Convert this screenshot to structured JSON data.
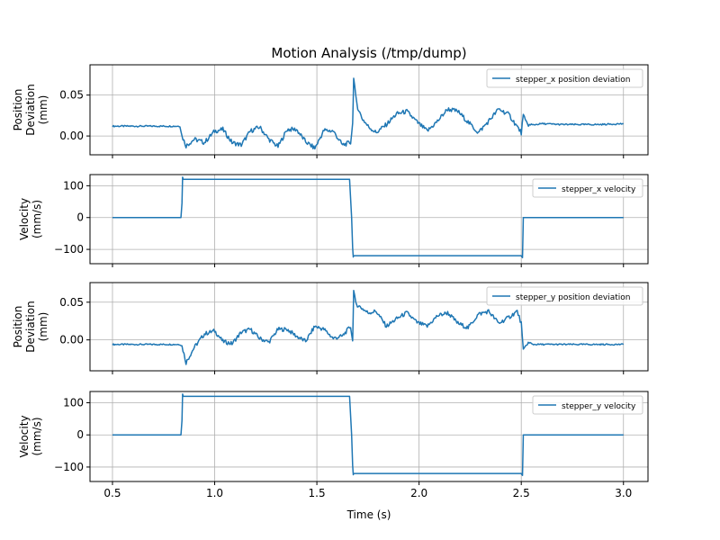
{
  "title": "Motion Analysis (/tmp/dump)",
  "xlabel": "Time (s)",
  "colors": {
    "series": "#1f77b4",
    "grid": "#b0b0b0",
    "axis": "#000000",
    "legend_border": "#cccccc"
  },
  "chart_data": [
    {
      "type": "line",
      "panel_name": "x-position-deviation",
      "ylabel_lines": [
        "Position",
        "Deviation",
        "(mm)"
      ],
      "legend": "stepper_x position deviation",
      "legend_placement": "top-right",
      "xlim": [
        0.39,
        3.12
      ],
      "ylim": [
        -0.023,
        0.087
      ],
      "xticks": [
        0.5,
        1.0,
        1.5,
        2.0,
        2.5,
        3.0
      ],
      "xtick_labels": [],
      "yticks": [
        0.0,
        0.05
      ],
      "ytick_labels": [
        "0.00",
        "0.05"
      ],
      "grid": true,
      "series": [
        {
          "name": "stepper_x position deviation",
          "x": [
            0.5,
            0.83,
            0.84,
            0.86,
            0.9,
            0.95,
            1.0,
            1.04,
            1.085,
            1.13,
            1.175,
            1.22,
            1.265,
            1.31,
            1.355,
            1.4,
            1.445,
            1.49,
            1.535,
            1.58,
            1.625,
            1.665,
            1.675,
            1.68,
            1.69,
            1.7,
            1.72,
            1.75,
            1.79,
            1.84,
            1.89,
            1.94,
            1.99,
            2.04,
            2.09,
            2.14,
            2.19,
            2.24,
            2.29,
            2.34,
            2.39,
            2.44,
            2.5,
            2.51,
            2.52,
            2.54,
            2.6,
            2.7,
            2.88,
            3.0
          ],
          "y": [
            0.012,
            0.012,
            0.0,
            -0.012,
            -0.004,
            -0.008,
            0.006,
            0.008,
            -0.008,
            -0.011,
            0.006,
            0.011,
            -0.004,
            -0.013,
            0.008,
            0.008,
            -0.007,
            -0.015,
            0.007,
            0.006,
            -0.011,
            -0.008,
            0.015,
            0.07,
            0.048,
            0.035,
            0.022,
            0.012,
            0.004,
            0.014,
            0.027,
            0.03,
            0.017,
            0.006,
            0.018,
            0.033,
            0.03,
            0.017,
            0.004,
            0.018,
            0.033,
            0.026,
            0.004,
            0.025,
            0.018,
            0.013,
            0.015,
            0.014,
            0.014,
            0.015
          ]
        }
      ]
    },
    {
      "type": "line",
      "panel_name": "x-velocity",
      "ylabel_lines": [
        "Velocity",
        "(mm/s)"
      ],
      "legend": "stepper_x velocity",
      "legend_placement": "top-right",
      "xlim": [
        0.39,
        3.12
      ],
      "ylim": [
        -145,
        135
      ],
      "xticks": [
        0.5,
        1.0,
        1.5,
        2.0,
        2.5,
        3.0
      ],
      "xtick_labels": [],
      "yticks": [
        -100,
        0,
        100
      ],
      "ytick_labels": [
        "−100",
        "0",
        "100"
      ],
      "grid": true,
      "series": [
        {
          "name": "stepper_x velocity",
          "x": [
            0.5,
            0.835,
            0.84,
            0.843,
            0.846,
            0.85,
            1.66,
            1.67,
            1.675,
            1.678,
            1.68,
            2.5,
            2.506,
            2.51,
            2.515,
            3.0
          ],
          "y": [
            0,
            0,
            45,
            127,
            120,
            120,
            120,
            0,
            -95,
            -124,
            -120,
            -120,
            -126,
            0,
            0,
            0
          ]
        }
      ]
    },
    {
      "type": "line",
      "panel_name": "y-position-deviation",
      "ylabel_lines": [
        "Position",
        "Deviation",
        "(mm)"
      ],
      "legend": "stepper_y position deviation",
      "legend_placement": "top-right",
      "xlim": [
        0.39,
        3.12
      ],
      "ylim": [
        -0.041,
        0.076
      ],
      "xticks": [
        0.5,
        1.0,
        1.5,
        2.0,
        2.5,
        3.0
      ],
      "xtick_labels": [],
      "yticks": [
        0.0,
        0.05
      ],
      "ytick_labels": [
        "0.00",
        "0.05"
      ],
      "grid": true,
      "series": [
        {
          "name": "stepper_y position deviation",
          "x": [
            0.5,
            0.83,
            0.84,
            0.86,
            0.9,
            0.95,
            1.0,
            1.04,
            1.085,
            1.13,
            1.175,
            1.22,
            1.265,
            1.31,
            1.355,
            1.4,
            1.445,
            1.49,
            1.535,
            1.58,
            1.625,
            1.665,
            1.675,
            1.68,
            1.69,
            1.72,
            1.75,
            1.79,
            1.84,
            1.89,
            1.94,
            1.99,
            2.04,
            2.09,
            2.14,
            2.19,
            2.24,
            2.29,
            2.34,
            2.39,
            2.44,
            2.48,
            2.5,
            2.51,
            2.53,
            2.56,
            2.6,
            2.7,
            3.0
          ],
          "y": [
            -0.006,
            -0.006,
            -0.008,
            -0.03,
            -0.01,
            0.008,
            0.012,
            -0.002,
            -0.005,
            0.01,
            0.014,
            0.002,
            -0.003,
            0.014,
            0.014,
            0.005,
            -0.002,
            0.018,
            0.014,
            0.002,
            0.005,
            0.018,
            -0.002,
            0.065,
            0.048,
            0.042,
            0.036,
            0.038,
            0.018,
            0.028,
            0.036,
            0.023,
            0.018,
            0.032,
            0.036,
            0.022,
            0.016,
            0.034,
            0.038,
            0.022,
            0.03,
            0.038,
            0.022,
            -0.015,
            -0.004,
            -0.006,
            -0.006,
            -0.006,
            -0.006
          ]
        }
      ]
    },
    {
      "type": "line",
      "panel_name": "y-velocity",
      "ylabel_lines": [
        "Velocity",
        "(mm/s)"
      ],
      "legend": "stepper_y velocity",
      "legend_placement": "top-right",
      "xlim": [
        0.39,
        3.12
      ],
      "ylim": [
        -145,
        135
      ],
      "xticks": [
        0.5,
        1.0,
        1.5,
        2.0,
        2.5,
        3.0
      ],
      "xtick_labels": [
        "0.5",
        "1.0",
        "1.5",
        "2.0",
        "2.5",
        "3.0"
      ],
      "yticks": [
        -100,
        0,
        100
      ],
      "ytick_labels": [
        "−100",
        "0",
        "100"
      ],
      "grid": true,
      "series": [
        {
          "name": "stepper_y velocity",
          "x": [
            0.5,
            0.835,
            0.84,
            0.843,
            0.846,
            0.85,
            1.66,
            1.67,
            1.675,
            1.678,
            1.68,
            2.5,
            2.506,
            2.51,
            2.515,
            3.0
          ],
          "y": [
            0,
            0,
            45,
            127,
            120,
            120,
            120,
            0,
            -95,
            -124,
            -120,
            -120,
            -126,
            0,
            0,
            0
          ]
        }
      ]
    }
  ]
}
